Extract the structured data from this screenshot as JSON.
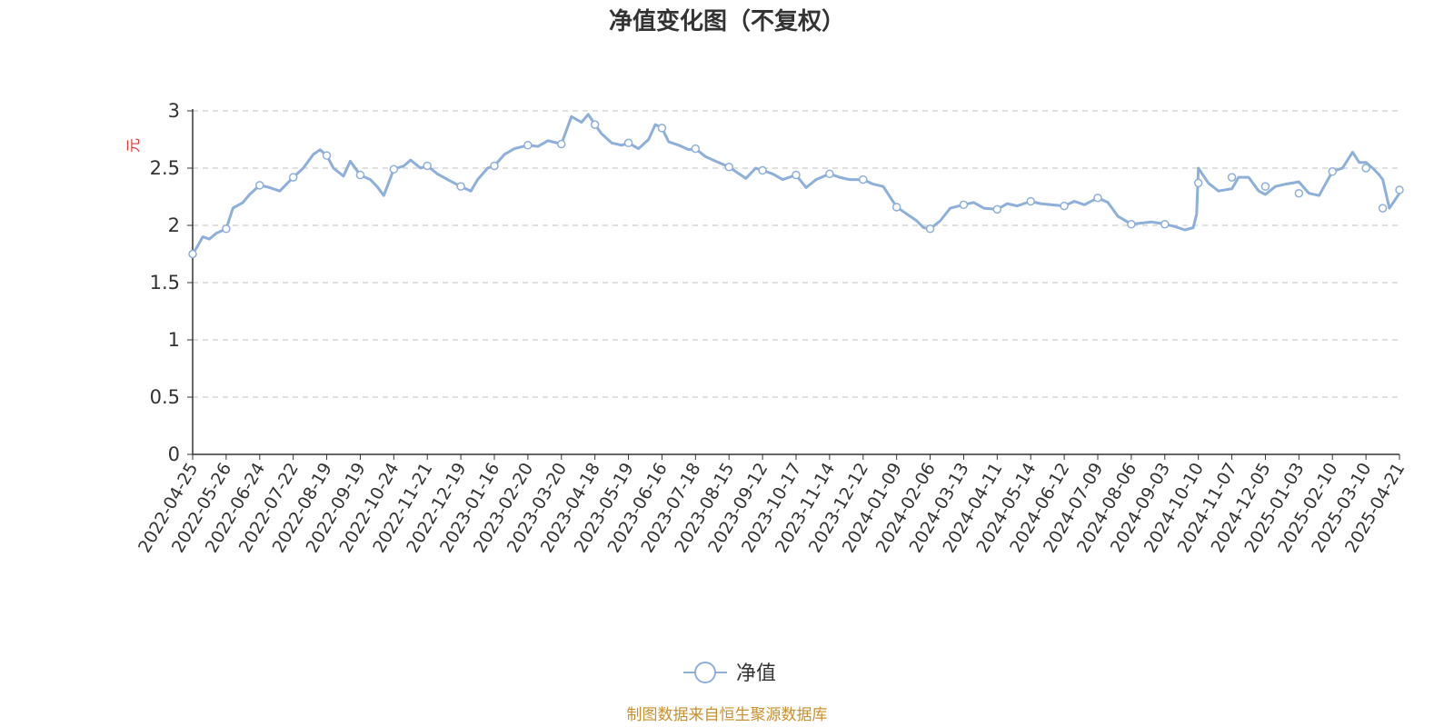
{
  "chart_data": {
    "type": "line",
    "title": "净值变化图（不复权）",
    "ylabel": "元",
    "ylim": [
      0,
      3
    ],
    "yticks": [
      "0",
      "0.5",
      "1",
      "1.5",
      "2",
      "2.5",
      "3"
    ],
    "categories": [
      "2022-04-25",
      "2022-05-26",
      "2022-06-24",
      "2022-07-22",
      "2022-08-19",
      "2022-09-19",
      "2022-10-24",
      "2022-11-21",
      "2022-12-19",
      "2023-01-16",
      "2023-02-20",
      "2023-03-20",
      "2023-04-18",
      "2023-05-19",
      "2023-06-16",
      "2023-07-18",
      "2023-08-15",
      "2023-09-12",
      "2023-10-17",
      "2023-11-14",
      "2023-12-12",
      "2024-01-09",
      "2024-02-06",
      "2024-03-13",
      "2024-04-11",
      "2024-05-14",
      "2024-06-12",
      "2024-07-09",
      "2024-08-06",
      "2024-09-03",
      "2024-10-10",
      "2024-11-07",
      "2024-12-05",
      "2025-01-03",
      "2025-02-10",
      "2025-03-10",
      "2025-04-21"
    ],
    "series": [
      {
        "name": "净值",
        "color": "#8eafd9",
        "markers_x": [
          0,
          1,
          2,
          3,
          4,
          5,
          6,
          7,
          8,
          9,
          10,
          11,
          12,
          13,
          14,
          15,
          16,
          17,
          18,
          19,
          20,
          21,
          22,
          23,
          24,
          25,
          26,
          27,
          28,
          29,
          30,
          31,
          32,
          33,
          34,
          35,
          35.5,
          36
        ],
        "markers_y": [
          1.75,
          1.97,
          2.35,
          2.42,
          2.61,
          2.44,
          2.49,
          2.52,
          2.34,
          2.52,
          2.7,
          2.71,
          2.88,
          2.72,
          2.85,
          2.67,
          2.51,
          2.48,
          2.44,
          2.45,
          2.4,
          2.16,
          1.97,
          2.18,
          2.14,
          2.21,
          2.17,
          2.24,
          2.01,
          2.01,
          2.37,
          2.42,
          2.34,
          2.28,
          2.47,
          2.5,
          2.15,
          2.31
        ],
        "line_x": [
          0,
          0.15,
          0.3,
          0.5,
          0.7,
          1,
          1.2,
          1.5,
          1.7,
          2,
          2.3,
          2.6,
          3,
          3.3,
          3.6,
          3.8,
          4,
          4.2,
          4.5,
          4.7,
          5,
          5.3,
          5.5,
          5.7,
          6,
          6.3,
          6.5,
          6.8,
          7,
          7.3,
          7.6,
          8,
          8.3,
          8.5,
          8.8,
          9,
          9.3,
          9.6,
          10,
          10.3,
          10.6,
          11,
          11.3,
          11.6,
          11.8,
          12,
          12.2,
          12.5,
          12.8,
          13,
          13.3,
          13.6,
          13.8,
          14,
          14.2,
          14.5,
          14.8,
          15,
          15.3,
          15.6,
          16,
          16.3,
          16.5,
          16.8,
          17,
          17.3,
          17.6,
          18,
          18.3,
          18.6,
          19,
          19.3,
          19.6,
          20,
          20.3,
          20.6,
          21,
          21.3,
          21.6,
          21.8,
          22,
          22.3,
          22.6,
          23,
          23.3,
          23.6,
          24,
          24.3,
          24.6,
          25,
          25.3,
          25.6,
          26,
          26.3,
          26.6,
          27,
          27.3,
          27.6,
          28,
          28.3,
          28.6,
          29,
          29.3,
          29.6,
          29.85,
          29.95,
          30,
          30.3,
          30.6,
          31,
          31.2,
          31.5,
          31.8,
          32,
          32.3,
          32.6,
          33,
          33.3,
          33.6,
          34,
          34.3,
          34.6,
          34.8,
          35,
          35.2,
          35.4,
          35.5,
          35.7,
          36
        ],
        "line_y": [
          1.75,
          1.82,
          1.9,
          1.88,
          1.93,
          1.97,
          2.15,
          2.2,
          2.27,
          2.35,
          2.33,
          2.3,
          2.42,
          2.5,
          2.62,
          2.66,
          2.61,
          2.5,
          2.43,
          2.56,
          2.44,
          2.4,
          2.34,
          2.26,
          2.49,
          2.52,
          2.57,
          2.5,
          2.52,
          2.45,
          2.4,
          2.34,
          2.3,
          2.4,
          2.5,
          2.52,
          2.62,
          2.67,
          2.7,
          2.69,
          2.74,
          2.71,
          2.95,
          2.9,
          2.97,
          2.88,
          2.8,
          2.72,
          2.7,
          2.72,
          2.67,
          2.75,
          2.88,
          2.85,
          2.73,
          2.7,
          2.66,
          2.67,
          2.6,
          2.56,
          2.51,
          2.45,
          2.41,
          2.5,
          2.48,
          2.45,
          2.4,
          2.44,
          2.33,
          2.4,
          2.45,
          2.42,
          2.4,
          2.4,
          2.36,
          2.34,
          2.16,
          2.1,
          2.04,
          1.98,
          1.97,
          2.04,
          2.15,
          2.18,
          2.2,
          2.15,
          2.14,
          2.19,
          2.17,
          2.21,
          2.19,
          2.18,
          2.17,
          2.21,
          2.18,
          2.24,
          2.2,
          2.08,
          2.01,
          2.02,
          2.03,
          2.01,
          1.99,
          1.96,
          1.98,
          2.1,
          2.5,
          2.37,
          2.3,
          2.32,
          2.42,
          2.42,
          2.3,
          2.27,
          2.34,
          2.36,
          2.38,
          2.28,
          2.26,
          2.47,
          2.5,
          2.64,
          2.55,
          2.55,
          2.5,
          2.44,
          2.4,
          2.15,
          2.28,
          2.31
        ]
      }
    ],
    "grid": "y-dashed",
    "legend_position": "bottom-center"
  },
  "footer": {
    "source": "制图数据来自恒生聚源数据库"
  }
}
